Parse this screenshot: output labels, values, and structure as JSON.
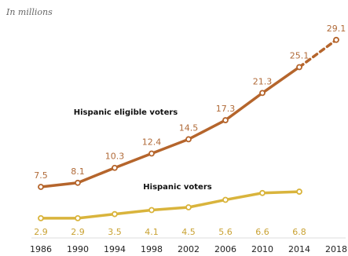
{
  "chart_data": {
    "type": "line",
    "subtitle": "In millions",
    "x": [
      1986,
      1990,
      1994,
      1998,
      2002,
      2006,
      2010,
      2014,
      2018
    ],
    "xlim": [
      1986,
      2018
    ],
    "ylim": [
      0,
      30
    ],
    "series": [
      {
        "name": "Hispanic eligible voters",
        "color": "#b5652c",
        "label_color": "#b06a38",
        "dash_last_segment": true,
        "values": [
          7.5,
          8.1,
          10.3,
          12.4,
          14.5,
          17.3,
          21.3,
          25.1,
          29.1
        ]
      },
      {
        "name": "Hispanic voters",
        "color": "#d9b43c",
        "label_color": "#c9a233",
        "dash_last_segment": false,
        "values": [
          2.9,
          2.9,
          3.5,
          4.1,
          4.5,
          5.6,
          6.6,
          6.8,
          null
        ]
      }
    ]
  }
}
